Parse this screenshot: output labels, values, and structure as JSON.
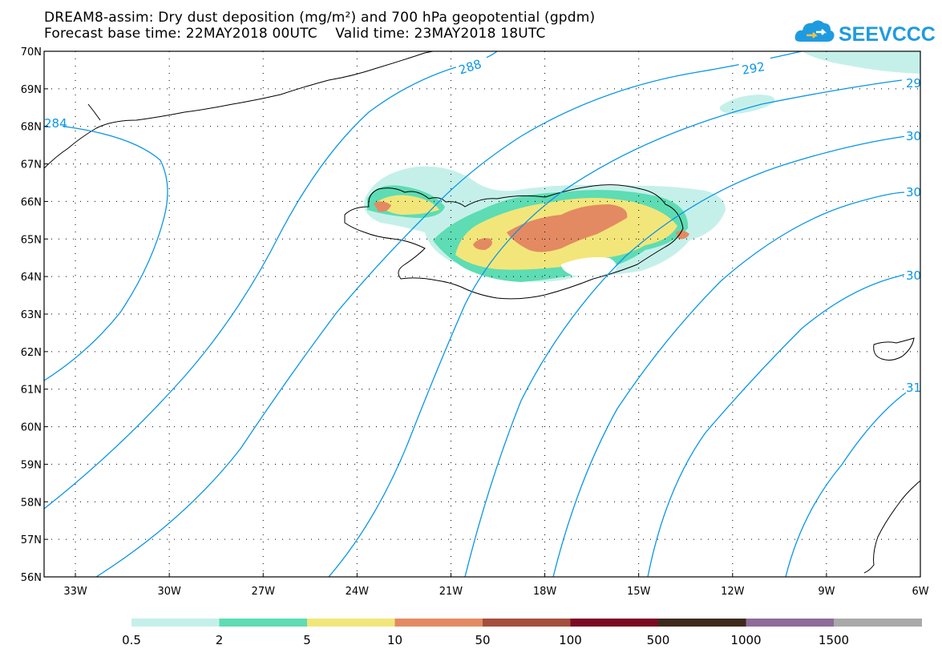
{
  "title": {
    "line1": "DREAM8-assim: Dry dust deposition (mg/m²) and 700 hPa geopotential (gpdm)",
    "line2": "Forecast base time: 22MAY2018 00UTC    Valid time: 23MAY2018 18UTC"
  },
  "logo": {
    "text": "SEEVCCC",
    "icon": "cloud-logo-icon",
    "color": "#1e9be0"
  },
  "map": {
    "lat_labels": [
      "70N",
      "69N",
      "68N",
      "67N",
      "66N",
      "65N",
      "64N",
      "63N",
      "62N",
      "61N",
      "60N",
      "59N",
      "58N",
      "57N",
      "56N"
    ],
    "lon_labels": [
      "33W",
      "30W",
      "27W",
      "24W",
      "21W",
      "18W",
      "15W",
      "12W",
      "9W",
      "6W"
    ],
    "lon_range": [
      -34.0,
      -6.0
    ],
    "lat_range": [
      56.0,
      70.0
    ],
    "contour_color": "#0a96e6",
    "contour_labels": [
      "284",
      "288",
      "292",
      "29",
      "30",
      "30",
      "30",
      "31"
    ],
    "dust_colors": {
      "level_0_5": "#c5f0ea",
      "level_2": "#5edcb3",
      "level_5": "#f2e67a",
      "level_10": "#e38a62"
    }
  },
  "colorbar": {
    "labels": [
      "0.5",
      "2",
      "5",
      "10",
      "50",
      "100",
      "500",
      "1000",
      "1500"
    ],
    "colors": [
      "#c5f0ea",
      "#5edcb3",
      "#f2e67a",
      "#e38a62",
      "#a44f3d",
      "#7a0a22",
      "#3e2a1c",
      "#8f6a9a",
      "#a9a9a9"
    ]
  }
}
